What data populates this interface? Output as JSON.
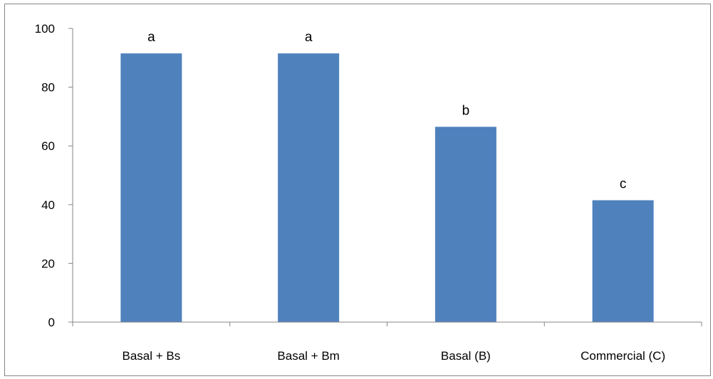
{
  "chart_data": {
    "type": "bar",
    "categories": [
      "Basal + Bs",
      "Basal + Bm",
      "Basal (B)",
      "Commercial (C)"
    ],
    "values": [
      91.5,
      91.5,
      66.5,
      41.5
    ],
    "data_labels": [
      "a",
      "a",
      "b",
      "c"
    ],
    "title": "",
    "xlabel": "",
    "ylabel": "",
    "ylim": [
      0,
      100
    ],
    "yticks": [
      0,
      20,
      40,
      60,
      80,
      100
    ],
    "grid": false,
    "legend": "none",
    "bar_color": "#4f81bd",
    "axis_color": "#868686"
  }
}
